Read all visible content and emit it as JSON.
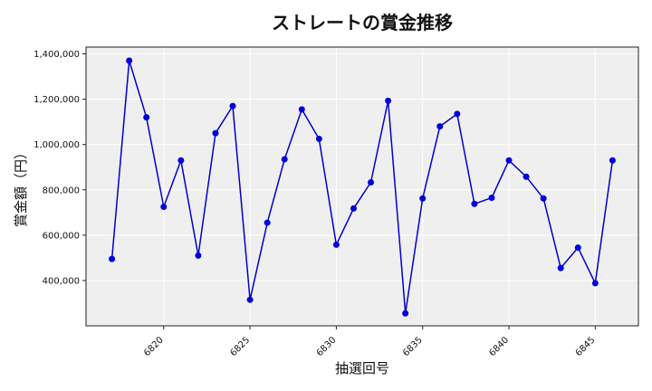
{
  "chart_data": {
    "type": "line",
    "title": "ストレートの賞金推移",
    "xlabel": "抽選回号",
    "ylabel": "賞金額（円）",
    "x": [
      6817,
      6818,
      6819,
      6820,
      6821,
      6822,
      6823,
      6824,
      6825,
      6826,
      6827,
      6828,
      6829,
      6830,
      6831,
      6832,
      6833,
      6834,
      6835,
      6836,
      6837,
      6838,
      6839,
      6840,
      6841,
      6842,
      6843,
      6844,
      6845,
      6846
    ],
    "y": [
      495000,
      1370000,
      1120000,
      725000,
      930000,
      510000,
      1050000,
      1170000,
      315000,
      655000,
      935000,
      1155000,
      1025000,
      558000,
      718000,
      833000,
      1193000,
      255000,
      762000,
      1080000,
      1135000,
      738000,
      765000,
      930000,
      858000,
      762000,
      455000,
      545000,
      388000,
      930000
    ],
    "xticks": [
      6820,
      6825,
      6830,
      6835,
      6840,
      6845
    ],
    "xtick_labels": [
      "6820",
      "6825",
      "6830",
      "6835",
      "6840",
      "6845"
    ],
    "yticks": [
      400000,
      600000,
      800000,
      1000000,
      1200000,
      1400000
    ],
    "ytick_labels": [
      "400,000",
      "600,000",
      "800,000",
      "1,000,000",
      "1,200,000",
      "1,400,000"
    ],
    "xlim": [
      6815.5,
      6847.5
    ],
    "ylim": [
      200000,
      1430000
    ],
    "grid": true,
    "line_color": "#0000cc",
    "marker_color": "#0000dd",
    "background_color": "#efefef",
    "grid_color": "#ffffff"
  }
}
